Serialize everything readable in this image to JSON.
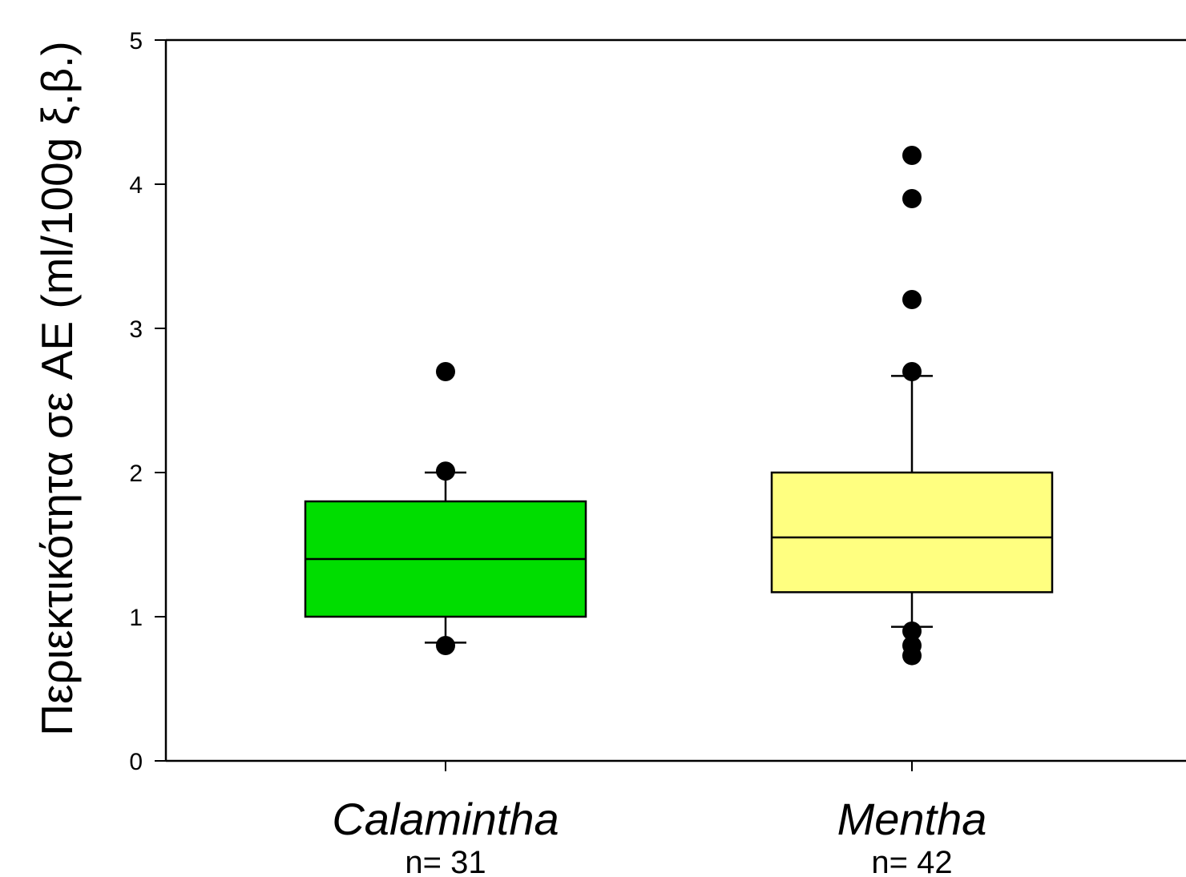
{
  "chart_data": {
    "type": "box",
    "ylabel": "Περιεκτικότητα σε AE (ml/100g ξ.β.)",
    "ylim": [
      0,
      5
    ],
    "yticks": [
      0,
      1,
      2,
      3,
      4,
      5
    ],
    "categories": [
      "Calamintha",
      "Mentha"
    ],
    "sample_sizes": [
      "n= 31",
      "n= 42"
    ],
    "grid": false,
    "boxes": [
      {
        "color": "#00dd00",
        "whisker_low": 0.82,
        "q1": 1.0,
        "median": 1.4,
        "q3": 1.8,
        "whisker_high": 2.0,
        "outliers": [
          2.7,
          2.01,
          0.8
        ]
      },
      {
        "color": "#ffff80",
        "whisker_low": 0.93,
        "q1": 1.17,
        "median": 1.55,
        "q3": 2.0,
        "whisker_high": 2.67,
        "outliers": [
          4.2,
          3.9,
          3.2,
          2.7,
          0.9,
          0.8,
          0.73
        ]
      }
    ]
  }
}
